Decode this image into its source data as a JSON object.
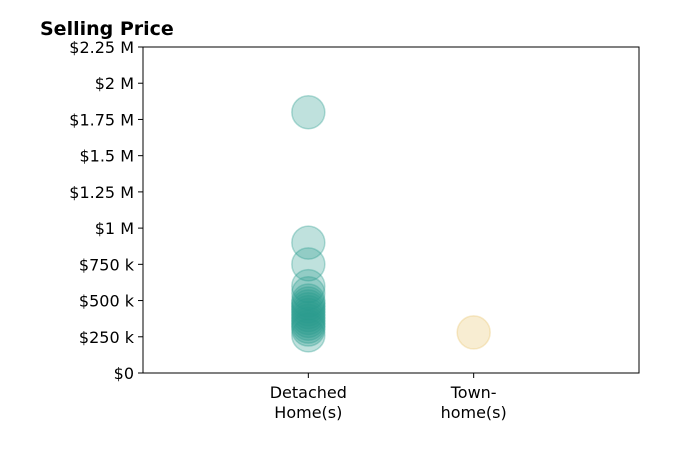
{
  "chart_data": {
    "type": "scatter",
    "title": "Selling Price",
    "xlabel": "",
    "ylabel": "",
    "categories": [
      "Detached Home(s)",
      "Town-home(s)"
    ],
    "category_label_lines": [
      [
        "Detached",
        "Home(s)"
      ],
      [
        "Town-",
        "home(s)"
      ]
    ],
    "ylim": [
      0,
      2250000
    ],
    "yticks": [
      0,
      250000,
      500000,
      750000,
      1000000,
      1250000,
      1500000,
      1750000,
      2000000,
      2250000
    ],
    "ytick_labels": [
      "$0",
      "$250 k",
      "$500 k",
      "$750 k",
      "$1 M",
      "$1.25 M",
      "$1.5 M",
      "$1.75 M",
      "$2 M",
      "$2.25 M"
    ],
    "grid": false,
    "series": [
      {
        "category": "Detached Home(s)",
        "color": "#2a9d8f",
        "values": [
          1800000,
          900000,
          750000,
          600000,
          550000,
          500000,
          480000,
          460000,
          440000,
          420000,
          400000,
          380000,
          360000,
          340000,
          320000,
          300000,
          260000
        ]
      },
      {
        "category": "Town-home(s)",
        "color": "#e9c46a",
        "values": [
          280000
        ]
      }
    ]
  }
}
